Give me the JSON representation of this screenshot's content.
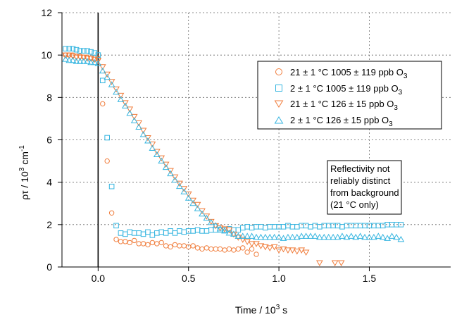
{
  "chart_data": {
    "type": "scatter",
    "xlabel": "Time / 10",
    "xlabel_sup": "3",
    "xlabel_tail": " s",
    "ylabel": "ρτ / 10",
    "ylabel_sup": "3",
    "ylabel_mid": " cm",
    "ylabel_sup2": "-1",
    "xlim": [
      -0.2,
      1.95
    ],
    "ylim": [
      0,
      12
    ],
    "xticks": [
      "0.0",
      "0.5",
      "1.0",
      "1.5"
    ],
    "xtick_values": [
      0,
      0.5,
      1.0,
      1.5
    ],
    "yticks": [
      "0",
      "2",
      "4",
      "6",
      "8",
      "10",
      "12"
    ],
    "ytick_values": [
      0,
      2,
      4,
      6,
      8,
      10,
      12
    ],
    "grid": true,
    "legend_position": "top-right",
    "annotation": [
      "Reflectivity not",
      "reliably distinct",
      "from background",
      "(21 °C only)"
    ],
    "series": [
      {
        "name": "21 ± 1 °C 1005 ± 119 ppb O",
        "name_sub": "3",
        "marker": "circle",
        "color": "#f07d3c",
        "x": [
          -0.18,
          -0.16,
          -0.14,
          -0.12,
          -0.1,
          -0.08,
          -0.06,
          -0.04,
          -0.02,
          0.0,
          0.025,
          0.05,
          0.075,
          0.1,
          0.125,
          0.15,
          0.175,
          0.2,
          0.225,
          0.25,
          0.275,
          0.3,
          0.325,
          0.35,
          0.375,
          0.4,
          0.425,
          0.45,
          0.475,
          0.5,
          0.525,
          0.55,
          0.575,
          0.6,
          0.625,
          0.65,
          0.675,
          0.7,
          0.725,
          0.75,
          0.775,
          0.8,
          0.825,
          0.85,
          0.875
        ],
        "y": [
          10.0,
          10.0,
          10.0,
          9.95,
          9.95,
          9.9,
          9.9,
          9.85,
          9.8,
          9.85,
          7.7,
          5.0,
          2.55,
          1.3,
          1.2,
          1.2,
          1.15,
          1.25,
          1.1,
          1.1,
          1.05,
          1.15,
          1.1,
          1.15,
          1.0,
          0.95,
          1.05,
          1.0,
          1.0,
          0.95,
          1.0,
          0.9,
          0.85,
          0.9,
          0.85,
          0.85,
          0.85,
          0.8,
          0.85,
          0.8,
          0.85,
          0.9,
          0.7,
          0.85,
          0.6
        ]
      },
      {
        "name": "2 ± 1 °C  1005 ± 119 ppb O",
        "name_sub": "3",
        "marker": "square",
        "color": "#36b5e0",
        "x": [
          -0.18,
          -0.16,
          -0.14,
          -0.12,
          -0.1,
          -0.08,
          -0.06,
          -0.04,
          -0.02,
          0.0,
          0.025,
          0.05,
          0.075,
          0.1,
          0.125,
          0.15,
          0.175,
          0.2,
          0.225,
          0.25,
          0.275,
          0.3,
          0.325,
          0.35,
          0.375,
          0.4,
          0.425,
          0.45,
          0.475,
          0.5,
          0.525,
          0.55,
          0.575,
          0.6,
          0.625,
          0.65,
          0.675,
          0.7,
          0.725,
          0.75,
          0.775,
          0.8,
          0.825,
          0.85,
          0.875,
          0.9,
          0.925,
          0.95,
          0.975,
          1.0,
          1.025,
          1.05,
          1.075,
          1.1,
          1.125,
          1.15,
          1.175,
          1.2,
          1.225,
          1.25,
          1.275,
          1.3,
          1.325,
          1.35,
          1.375,
          1.4,
          1.425,
          1.45,
          1.475,
          1.5,
          1.525,
          1.55,
          1.575,
          1.6,
          1.625,
          1.65,
          1.675
        ],
        "y": [
          10.3,
          10.3,
          10.3,
          10.25,
          10.2,
          10.2,
          10.2,
          10.15,
          10.1,
          10.0,
          8.8,
          6.1,
          3.8,
          1.95,
          1.6,
          1.55,
          1.65,
          1.6,
          1.6,
          1.55,
          1.65,
          1.5,
          1.6,
          1.65,
          1.6,
          1.7,
          1.6,
          1.7,
          1.65,
          1.7,
          1.7,
          1.75,
          1.7,
          1.7,
          1.75,
          1.75,
          1.75,
          1.75,
          1.8,
          1.75,
          1.75,
          1.85,
          1.9,
          1.85,
          1.9,
          1.9,
          1.85,
          1.9,
          1.9,
          1.9,
          1.9,
          1.95,
          1.9,
          1.9,
          1.95,
          1.95,
          1.9,
          1.95,
          1.9,
          1.95,
          1.95,
          1.95,
          1.95,
          1.9,
          1.95,
          1.95,
          1.95,
          1.95,
          1.95,
          1.95,
          1.95,
          1.95,
          1.95,
          2.0,
          2.0,
          2.0,
          2.0
        ]
      },
      {
        "name": "21 ± 1 °C 126 ± 15 ppb O",
        "name_sub": "3",
        "marker": "triangle-down",
        "color": "#f07d3c",
        "x": [
          -0.18,
          -0.16,
          -0.14,
          -0.12,
          -0.1,
          -0.08,
          -0.06,
          -0.04,
          -0.02,
          0.0,
          0.025,
          0.05,
          0.075,
          0.1,
          0.125,
          0.15,
          0.175,
          0.2,
          0.225,
          0.25,
          0.275,
          0.3,
          0.325,
          0.35,
          0.375,
          0.4,
          0.425,
          0.45,
          0.475,
          0.5,
          0.525,
          0.55,
          0.575,
          0.6,
          0.625,
          0.65,
          0.675,
          0.7,
          0.725,
          0.75,
          0.775,
          0.8,
          0.825,
          0.85,
          0.875,
          0.9,
          0.925,
          0.95,
          0.975,
          1.0,
          1.025,
          1.05,
          1.075,
          1.1,
          1.125,
          1.15,
          1.225,
          1.31,
          1.345
        ],
        "y": [
          10.0,
          10.0,
          9.95,
          9.9,
          9.9,
          9.9,
          9.85,
          9.85,
          9.8,
          9.75,
          9.45,
          9.1,
          8.75,
          8.4,
          8.1,
          7.75,
          7.45,
          7.1,
          6.8,
          6.45,
          6.1,
          5.8,
          5.45,
          5.15,
          4.85,
          4.55,
          4.25,
          3.95,
          3.7,
          3.45,
          3.15,
          2.95,
          2.65,
          2.4,
          2.15,
          1.95,
          1.85,
          1.8,
          1.75,
          1.55,
          1.4,
          1.3,
          1.2,
          1.1,
          1.1,
          1.0,
          0.95,
          0.9,
          0.95,
          0.8,
          0.85,
          0.8,
          0.8,
          0.75,
          0.8,
          0.7,
          0.2,
          0.2,
          0.2
        ]
      },
      {
        "name": "2 ± 1 °C  126 ± 15 ppb O",
        "name_sub": "3",
        "marker": "triangle-up",
        "color": "#36b5e0",
        "x": [
          -0.18,
          -0.16,
          -0.14,
          -0.12,
          -0.1,
          -0.08,
          -0.06,
          -0.04,
          -0.02,
          0.0,
          0.025,
          0.05,
          0.075,
          0.1,
          0.125,
          0.15,
          0.175,
          0.2,
          0.225,
          0.25,
          0.275,
          0.3,
          0.325,
          0.35,
          0.375,
          0.4,
          0.425,
          0.45,
          0.475,
          0.5,
          0.525,
          0.55,
          0.575,
          0.6,
          0.625,
          0.65,
          0.675,
          0.7,
          0.725,
          0.75,
          0.775,
          0.8,
          0.825,
          0.85,
          0.875,
          0.9,
          0.925,
          0.95,
          0.975,
          1.0,
          1.025,
          1.05,
          1.075,
          1.1,
          1.125,
          1.15,
          1.175,
          1.2,
          1.225,
          1.25,
          1.275,
          1.3,
          1.325,
          1.35,
          1.375,
          1.4,
          1.425,
          1.45,
          1.475,
          1.5,
          1.525,
          1.55,
          1.575,
          1.6,
          1.625,
          1.65,
          1.675
        ],
        "y": [
          9.8,
          9.75,
          9.75,
          9.7,
          9.7,
          9.7,
          9.7,
          9.65,
          9.65,
          9.6,
          9.25,
          8.95,
          8.6,
          8.25,
          7.9,
          7.6,
          7.25,
          6.9,
          6.6,
          6.25,
          5.95,
          5.6,
          5.3,
          5.0,
          4.7,
          4.4,
          4.1,
          3.8,
          3.55,
          3.25,
          3.0,
          2.75,
          2.5,
          2.3,
          2.1,
          1.95,
          1.8,
          1.7,
          1.6,
          1.55,
          1.45,
          1.45,
          1.45,
          1.45,
          1.4,
          1.4,
          1.4,
          1.4,
          1.4,
          1.4,
          1.35,
          1.4,
          1.4,
          1.4,
          1.45,
          1.45,
          1.45,
          1.45,
          1.4,
          1.4,
          1.4,
          1.4,
          1.4,
          1.45,
          1.4,
          1.45,
          1.4,
          1.45,
          1.4,
          1.4,
          1.4,
          1.45,
          1.4,
          1.35,
          1.45,
          1.4,
          1.3
        ]
      }
    ]
  }
}
